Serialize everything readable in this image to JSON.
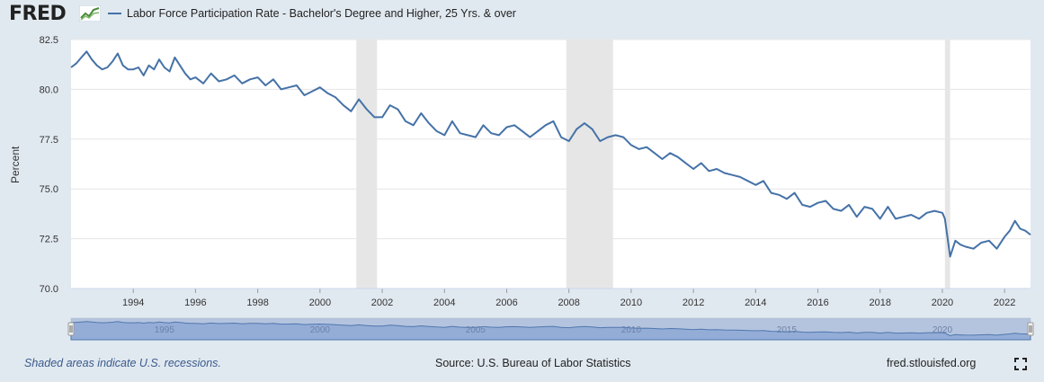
{
  "header": {
    "logo_text": "FRED",
    "legend_label": "Labor Force Participation Rate - Bachelor's Degree and Higher, 25 Yrs. & over"
  },
  "colors": {
    "series": "#4572a7",
    "recession": "#e6e6e6",
    "background": "#e1e9f0",
    "plot_background": "#ffffff",
    "navigator_fill": "#a8bfe0"
  },
  "chart_data": {
    "type": "line",
    "ylabel": "Percent",
    "ylim": [
      70.0,
      82.5
    ],
    "yticks": [
      "70.0",
      "72.5",
      "75.0",
      "77.5",
      "80.0",
      "82.5"
    ],
    "xlim": [
      "1992-01",
      "2022-11"
    ],
    "xticks": [
      "1994",
      "1996",
      "1998",
      "2000",
      "2002",
      "2004",
      "2006",
      "2008",
      "2010",
      "2012",
      "2014",
      "2016",
      "2018",
      "2020",
      "2022"
    ],
    "navigator_ticks": [
      "1995",
      "2000",
      "2005",
      "2010",
      "2015",
      "2020"
    ],
    "grid": true,
    "recessions": [
      [
        "2001-03",
        "2001-11"
      ],
      [
        "2007-12",
        "2009-06"
      ],
      [
        "2020-02",
        "2020-04"
      ]
    ],
    "series": [
      {
        "x": [
          "1992-01",
          "1992-03",
          "1992-05",
          "1992-07",
          "1992-09",
          "1992-11",
          "1993-01",
          "1993-03",
          "1993-05",
          "1993-07",
          "1993-09",
          "1993-11",
          "1994-01",
          "1994-03",
          "1994-05",
          "1994-07",
          "1994-09",
          "1994-11",
          "1995-01",
          "1995-03",
          "1995-05",
          "1995-07",
          "1995-09",
          "1995-11",
          "1996-01",
          "1996-04",
          "1996-07",
          "1996-10",
          "1997-01",
          "1997-04",
          "1997-07",
          "1997-10",
          "1998-01",
          "1998-04",
          "1998-07",
          "1998-10",
          "1999-01",
          "1999-04",
          "1999-07",
          "1999-10",
          "2000-01",
          "2000-04",
          "2000-07",
          "2000-10",
          "2001-01",
          "2001-04",
          "2001-07",
          "2001-10",
          "2002-01",
          "2002-04",
          "2002-07",
          "2002-10",
          "2003-01",
          "2003-04",
          "2003-07",
          "2003-10",
          "2004-01",
          "2004-04",
          "2004-07",
          "2004-10",
          "2005-01",
          "2005-04",
          "2005-07",
          "2005-10",
          "2006-01",
          "2006-04",
          "2006-07",
          "2006-10",
          "2007-01",
          "2007-04",
          "2007-07",
          "2007-10",
          "2008-01",
          "2008-04",
          "2008-07",
          "2008-10",
          "2009-01",
          "2009-04",
          "2009-07",
          "2009-10",
          "2010-01",
          "2010-04",
          "2010-07",
          "2010-10",
          "2011-01",
          "2011-04",
          "2011-07",
          "2011-10",
          "2012-01",
          "2012-04",
          "2012-07",
          "2012-10",
          "2013-01",
          "2013-04",
          "2013-07",
          "2013-10",
          "2014-01",
          "2014-04",
          "2014-07",
          "2014-10",
          "2015-01",
          "2015-04",
          "2015-07",
          "2015-10",
          "2016-01",
          "2016-04",
          "2016-07",
          "2016-10",
          "2017-01",
          "2017-04",
          "2017-07",
          "2017-10",
          "2018-01",
          "2018-04",
          "2018-07",
          "2018-10",
          "2019-01",
          "2019-04",
          "2019-07",
          "2019-10",
          "2020-01",
          "2020-02",
          "2020-04",
          "2020-06",
          "2020-08",
          "2020-10",
          "2021-01",
          "2021-04",
          "2021-07",
          "2021-10",
          "2022-01",
          "2022-03",
          "2022-05",
          "2022-07",
          "2022-09",
          "2022-11"
        ],
        "values": [
          81.1,
          81.3,
          81.6,
          81.9,
          81.5,
          81.2,
          81.0,
          81.1,
          81.4,
          81.8,
          81.2,
          81.0,
          81.0,
          81.1,
          80.7,
          81.2,
          81.0,
          81.5,
          81.1,
          80.9,
          81.6,
          81.2,
          80.8,
          80.5,
          80.6,
          80.3,
          80.8,
          80.4,
          80.5,
          80.7,
          80.3,
          80.5,
          80.6,
          80.2,
          80.5,
          80.0,
          80.1,
          80.2,
          79.7,
          79.9,
          80.1,
          79.8,
          79.6,
          79.2,
          78.9,
          79.5,
          79.0,
          78.6,
          78.6,
          79.2,
          79.0,
          78.4,
          78.2,
          78.8,
          78.3,
          77.9,
          77.7,
          78.4,
          77.8,
          77.7,
          77.6,
          78.2,
          77.8,
          77.7,
          78.1,
          78.2,
          77.9,
          77.6,
          77.9,
          78.2,
          78.4,
          77.6,
          77.4,
          78.0,
          78.3,
          78.0,
          77.4,
          77.6,
          77.7,
          77.6,
          77.2,
          77.0,
          77.1,
          76.8,
          76.5,
          76.8,
          76.6,
          76.3,
          76.0,
          76.3,
          75.9,
          76.0,
          75.8,
          75.7,
          75.6,
          75.4,
          75.2,
          75.4,
          74.8,
          74.7,
          74.5,
          74.8,
          74.2,
          74.1,
          74.3,
          74.4,
          74.0,
          73.9,
          74.2,
          73.6,
          74.1,
          74.0,
          73.5,
          74.1,
          73.5,
          73.6,
          73.7,
          73.5,
          73.8,
          73.9,
          73.8,
          73.5,
          71.6,
          72.4,
          72.2,
          72.1,
          72.0,
          72.3,
          72.4,
          72.0,
          72.6,
          72.9,
          73.4,
          73.0,
          72.9,
          72.7
        ]
      }
    ]
  },
  "footer": {
    "note": "Shaded areas indicate U.S. recessions.",
    "source": "Source: U.S. Bureau of Labor Statistics",
    "site": "fred.stlouisfed.org"
  }
}
